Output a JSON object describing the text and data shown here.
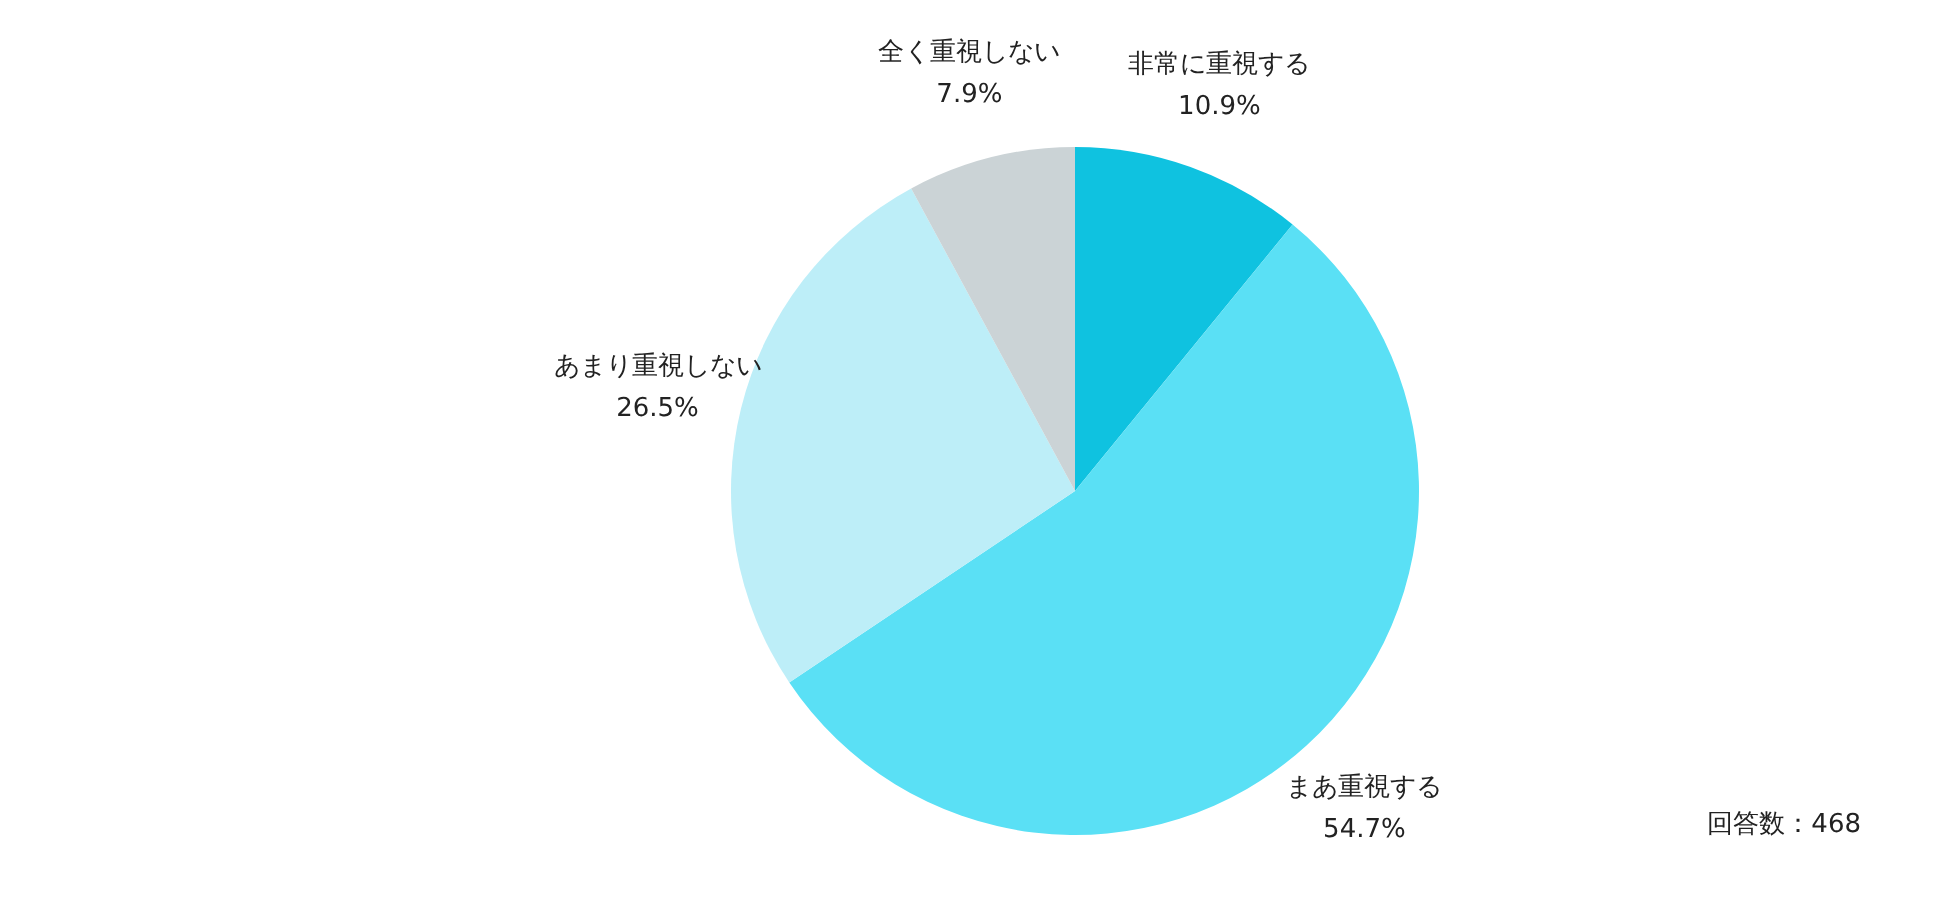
{
  "chart_data": {
    "type": "pie",
    "categories": [
      "非常に重視する",
      "まあ重視する",
      "あまり重視しない",
      "全く重視しない"
    ],
    "values": [
      10.9,
      54.7,
      26.5,
      7.9
    ],
    "value_labels": [
      "10.9%",
      "54.7%",
      "26.5%",
      "7.9%"
    ],
    "colors": [
      "#0fc2e0",
      "#5ae0f5",
      "#bdeef8",
      "#cbd3d6"
    ],
    "annotations": [
      "回答数：468"
    ]
  }
}
